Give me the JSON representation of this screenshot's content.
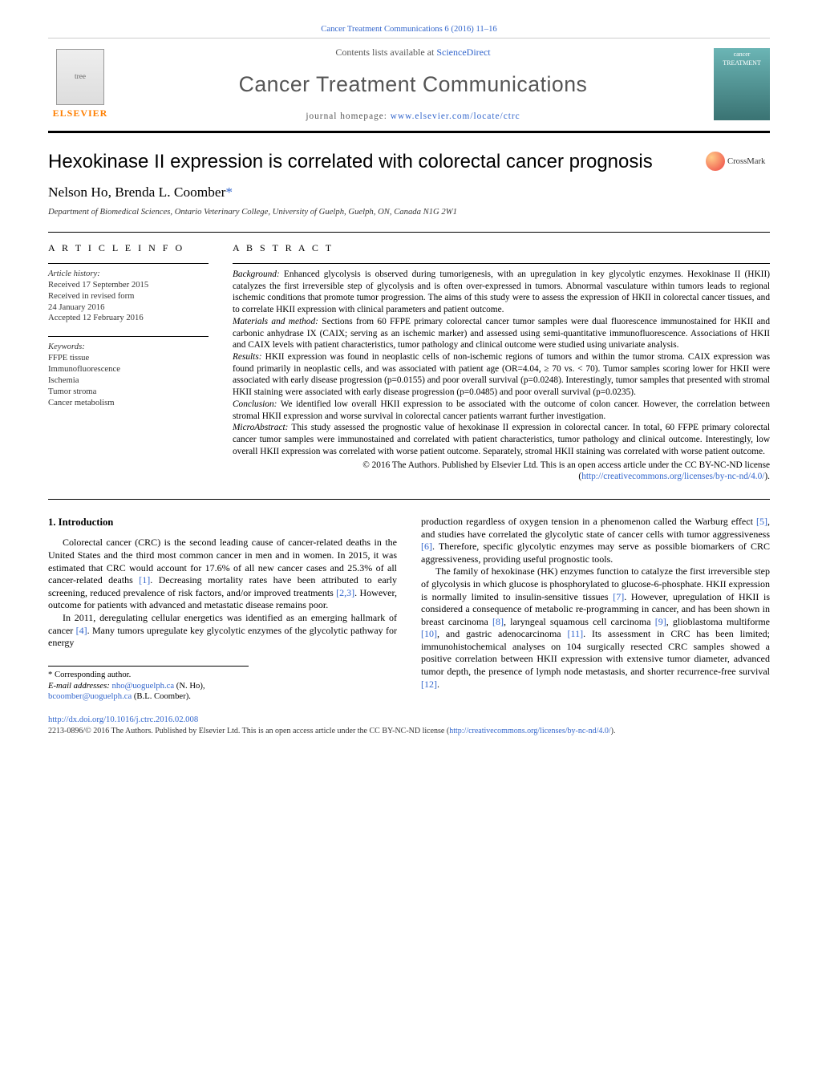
{
  "top_header": {
    "text_prefix": "Cancer Treatment Communications 6 (2016) 11–16",
    "link_url": "Cancer Treatment Communications 6 (2016) 11–16"
  },
  "masthead": {
    "publisher_name": "ELSEVIER",
    "contents_prefix": "Contents lists available at ",
    "contents_link": "ScienceDirect",
    "journal_title": "Cancer Treatment Communications",
    "homepage_prefix": "journal homepage: ",
    "homepage_link": "www.elsevier.com/locate/ctrc",
    "cover_text": "cancer TREATMENT"
  },
  "title": "Hexokinase II expression is correlated with colorectal cancer prognosis",
  "crossmark_label": "CrossMark",
  "authors_html": "Nelson Ho, Brenda L. Coomber",
  "corr_marker": "*",
  "affiliation": "Department of Biomedical Sciences, Ontario Veterinary College, University of Guelph, Guelph, ON, Canada N1G 2W1",
  "article_info": {
    "heading": "A R T I C L E  I N F O",
    "history_label": "Article history:",
    "history": [
      "Received 17 September 2015",
      "Received in revised form",
      "24 January 2016",
      "Accepted 12 February 2016"
    ],
    "keywords_label": "Keywords:",
    "keywords": [
      "FFPE tissue",
      "Immunofluorescence",
      "Ischemia",
      "Tumor stroma",
      "Cancer metabolism"
    ]
  },
  "abstract": {
    "heading": "A B S T R A C T",
    "sections": [
      {
        "label": "Background:",
        "text": " Enhanced glycolysis is observed during tumorigenesis, with an upregulation in key glycolytic enzymes. Hexokinase II (HKII) catalyzes the first irreversible step of glycolysis and is often over-expressed in tumors. Abnormal vasculature within tumors leads to regional ischemic conditions that promote tumor progression. The aims of this study were to assess the expression of HKII in colorectal cancer tissues, and to correlate HKII expression with clinical parameters and patient outcome."
      },
      {
        "label": "Materials and method:",
        "text": " Sections from 60 FFPE primary colorectal cancer tumor samples were dual fluorescence immunostained for HKII and carbonic anhydrase IX (CAIX; serving as an ischemic marker) and assessed using semi-quantitative immunofluorescence. Associations of HKII and CAIX levels with patient characteristics, tumor pathology and clinical outcome were studied using univariate analysis."
      },
      {
        "label": "Results:",
        "text": " HKII expression was found in neoplastic cells of non-ischemic regions of tumors and within the tumor stroma. CAIX expression was found primarily in neoplastic cells, and was associated with patient age (OR=4.04, ≥ 70 vs. < 70). Tumor samples scoring lower for HKII were associated with early disease progression (p=0.0155) and poor overall survival (p=0.0248). Interestingly, tumor samples that presented with stromal HKII staining were associated with early disease progression (p=0.0485) and poor overall survival (p=0.0235)."
      },
      {
        "label": "Conclusion:",
        "text": " We identified low overall HKII expression to be associated with the outcome of colon cancer. However, the correlation between stromal HKII expression and worse survival in colorectal cancer patients warrant further investigation."
      },
      {
        "label": "MicroAbstract:",
        "text": " This study assessed the prognostic value of hexokinase II expression in colorectal cancer. In total, 60 FFPE primary colorectal cancer tumor samples were immunostained and correlated with patient characteristics, tumor pathology and clinical outcome. Interestingly, low overall HKII expression was correlated with worse patient outcome. Separately, stromal HKII staining was correlated with worse patient outcome."
      }
    ],
    "copyright": "© 2016 The Authors. Published by Elsevier Ltd. This is an open access article under the CC BY-NC-ND license (",
    "license_link": "http://creativecommons.org/licenses/by-nc-nd/4.0/",
    "copyright_suffix": ")."
  },
  "body": {
    "heading": "1. Introduction",
    "left_col": [
      "Colorectal cancer (CRC) is the second leading cause of cancer-related deaths in the United States and the third most common cancer in men and in women. In 2015, it was estimated that CRC would account for 17.6% of all new cancer cases and 25.3% of all cancer-related deaths [1]. Decreasing mortality rates have been attributed to early screening, reduced prevalence of risk factors, and/or improved treatments [2,3]. However, outcome for patients with advanced and metastatic disease remains poor.",
      "In 2011, deregulating cellular energetics was identified as an emerging hallmark of cancer [4]. Many tumors upregulate key glycolytic enzymes of the glycolytic pathway for energy"
    ],
    "right_col": [
      "production regardless of oxygen tension in a phenomenon called the Warburg effect [5], and studies have correlated the glycolytic state of cancer cells with tumor aggressiveness [6]. Therefore, specific glycolytic enzymes may serve as possible biomarkers of CRC aggressiveness, providing useful prognostic tools.",
      "The family of hexokinase (HK) enzymes function to catalyze the first irreversible step of glycolysis in which glucose is phosphorylated to glucose-6-phosphate. HKII expression is normally limited to insulin-sensitive tissues [7]. However, upregulation of HKII is considered a consequence of metabolic re-programming in cancer, and has been shown in breast carcinoma [8], laryngeal squamous cell carcinoma [9], glioblastoma multiforme [10], and gastric adenocarcinoma [11]. Its assessment in CRC has been limited; immunohistochemical analyses on 104 surgically resected CRC samples showed a positive correlation between HKII expression with extensive tumor diameter, advanced tumor depth, the presence of lymph node metastasis, and shorter recurrence-free survival [12]."
    ],
    "refs_inline": {
      "1": "[1]",
      "2": "[2,",
      "3": "3]",
      "4": "[4]",
      "5": "[5]",
      "6": "[6]",
      "7": "[7]",
      "8": "[8]",
      "9": "[9]",
      "10": "[10]",
      "11": "[11]",
      "12": "[12]"
    }
  },
  "footnotes": {
    "corr": "* Corresponding author.",
    "email_label": "E-mail addresses: ",
    "emails": [
      {
        "addr": "nho@uoguelph.ca",
        "who": " (N. Ho),"
      },
      {
        "addr": "bcoomber@uoguelph.ca",
        "who": " (B.L. Coomber)."
      }
    ]
  },
  "doi": {
    "link": "http://dx.doi.org/10.1016/j.ctrc.2016.02.008",
    "issn_copyright": "2213-0896/© 2016 The Authors. Published by Elsevier Ltd. This is an open access article under the CC BY-NC-ND license (",
    "license_link": "http://creativecommons.org/licenses/by-nc-nd/4.0/",
    "suffix": ")."
  },
  "colors": {
    "link": "#3366cc",
    "elsevier_orange": "#ff7f00",
    "gray_text": "#555555",
    "rule": "#000000"
  }
}
